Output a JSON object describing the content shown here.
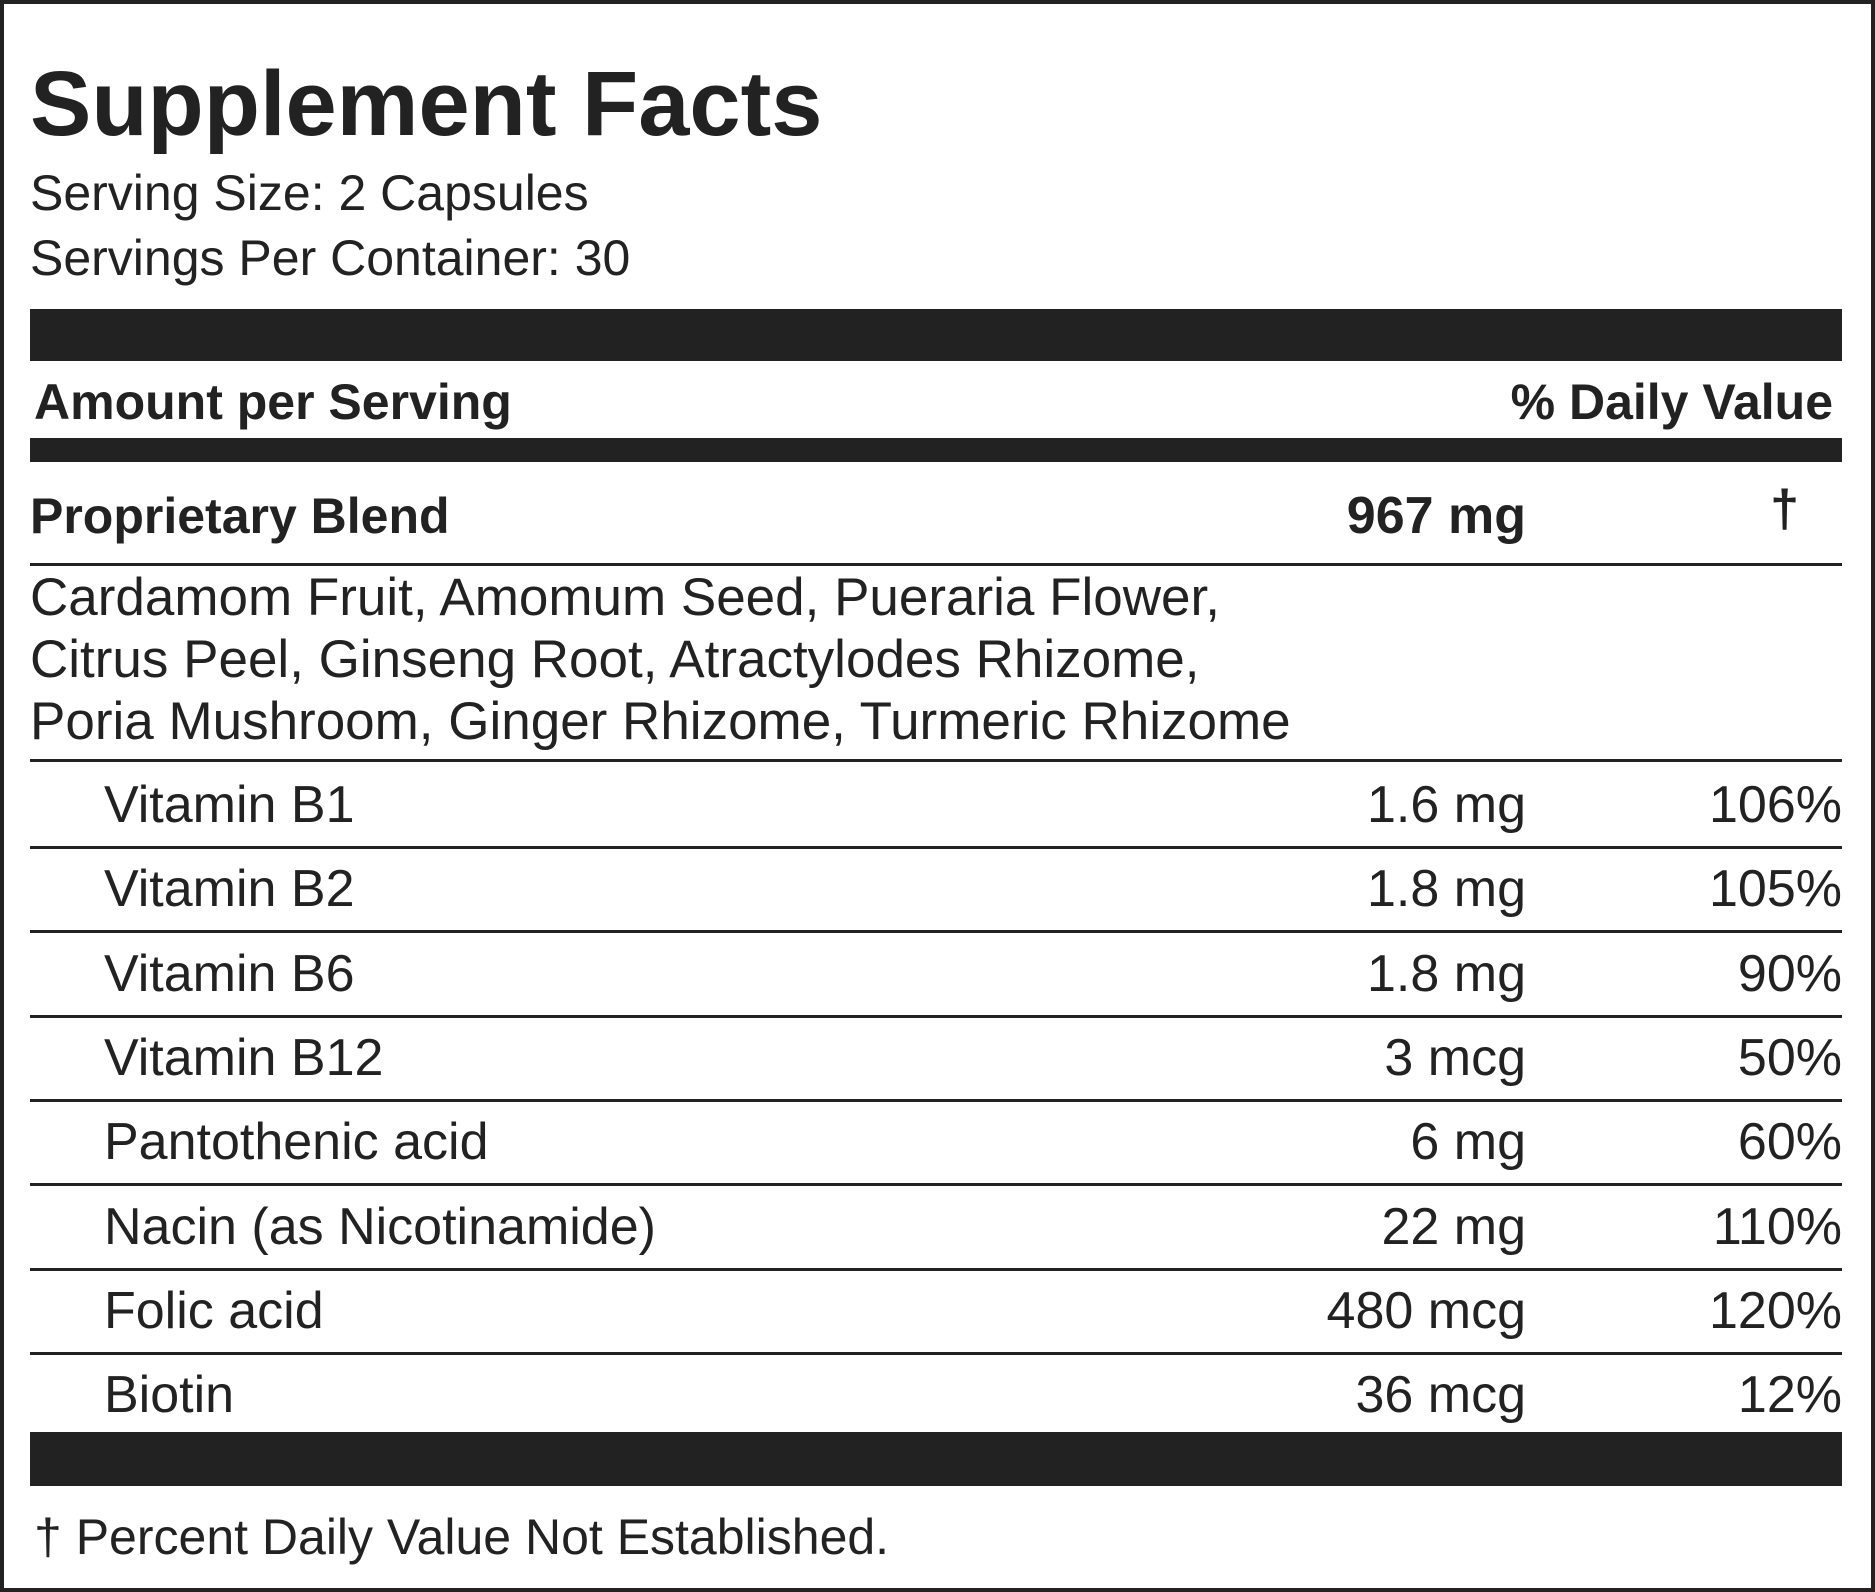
{
  "title": "Supplement Facts",
  "serving_size": "Serving Size: 2 Capsules",
  "servings_per_container": "Servings Per Container: 30",
  "header": {
    "amount": "Amount per Serving",
    "daily_value": "% Daily Value"
  },
  "blend": {
    "name": "Proprietary Blend",
    "amount": "967 mg",
    "daily_value": "†",
    "ingredients": [
      "Cardamom Fruit, Amomum Seed, Pueraria Flower,",
      "Citrus Peel, Ginseng Root, Atractylodes Rhizome,",
      "Poria Mushroom, Ginger Rhizome, Turmeric Rhizome"
    ]
  },
  "rows": [
    [
      "Vitamin B1",
      "1.6 mg",
      "106%"
    ],
    [
      "Vitamin B2",
      "1.8 mg",
      "105%"
    ],
    [
      "Vitamin B6",
      "1.8 mg",
      "90%"
    ],
    [
      "Vitamin B12",
      "3 mcg",
      "50%"
    ],
    [
      "Pantothenic acid",
      "6 mg",
      "60%"
    ],
    [
      "Nacin (as Nicotinamide)",
      "22 mg",
      "110%"
    ],
    [
      "Folic acid",
      "480 mcg",
      "120%"
    ],
    [
      "Biotin",
      "36 mcg",
      "12%"
    ]
  ],
  "footnote": "† Percent Daily Value Not Established."
}
